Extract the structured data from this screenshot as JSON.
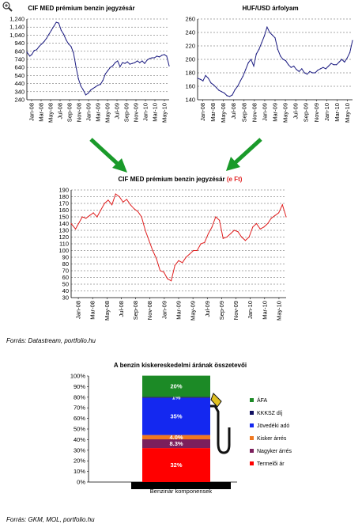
{
  "ui": {
    "zoom_icon": "magnifier-plus-icon"
  },
  "chart_data": [
    {
      "type": "line",
      "title": "CIF MED prémium benzin jegyzésár",
      "ylim": [
        240,
        1240
      ],
      "yticks": [
        "240",
        "340",
        "440",
        "540",
        "640",
        "740",
        "840",
        "940",
        "1,040",
        "1,140",
        "1,240"
      ],
      "xticks": [
        "Jan-08",
        "Mar-08",
        "May-08",
        "Jul-08",
        "Sep-08",
        "Nov-08",
        "Jan-09",
        "Mar-09",
        "May-09",
        "Jul-09",
        "Sep-09",
        "Nov-09",
        "Jan-10",
        "Mar-10",
        "May-10"
      ],
      "series": [
        {
          "color": "#1a1a80",
          "x": [
            0,
            0.6,
            1,
            1.5,
            2,
            2.5,
            3,
            3.5,
            4,
            4.5,
            5,
            5.5,
            6,
            6.5,
            7,
            7.5,
            8,
            8.5,
            9,
            9.5,
            10,
            10.5,
            11,
            11.5,
            12,
            12.5,
            13,
            13.5,
            14,
            14.5,
            15,
            15.5,
            16,
            16.5,
            17,
            17.5,
            18,
            18.5,
            19,
            19.5,
            20,
            20.5,
            21,
            21.5,
            22,
            22.5,
            23,
            23.5,
            24,
            24.5,
            25,
            25.5,
            26,
            26.5,
            27,
            27.5,
            28,
            28.5,
            29
          ],
          "values": [
            830,
            780,
            800,
            850,
            860,
            900,
            930,
            960,
            1000,
            1050,
            1100,
            1150,
            1200,
            1190,
            1100,
            1050,
            980,
            930,
            900,
            820,
            650,
            500,
            410,
            360,
            300,
            320,
            360,
            380,
            400,
            420,
            430,
            480,
            560,
            600,
            640,
            660,
            700,
            720,
            650,
            700,
            690,
            710,
            680,
            690,
            700,
            720,
            700,
            720,
            690,
            730,
            750,
            760,
            760,
            780,
            770,
            790,
            800,
            780,
            660
          ]
        }
      ]
    },
    {
      "type": "line",
      "title": "HUF/USD árfolyam",
      "ylim": [
        140,
        260
      ],
      "yticks": [
        "140",
        "160",
        "180",
        "200",
        "220",
        "240",
        "260"
      ],
      "xticks": [
        "Jan-08",
        "Mar-08",
        "May-08",
        "Jul-08",
        "Sep-08",
        "Nov-08",
        "Jan-09",
        "Mar-09",
        "May-09",
        "Jul-09",
        "Sep-09",
        "Nov-09",
        "Jan-10",
        "Mar-10",
        "May-10"
      ],
      "series": [
        {
          "color": "#1a1a80",
          "x": [
            0,
            0.6,
            1,
            1.5,
            2,
            2.5,
            3,
            3.5,
            4,
            4.5,
            5,
            5.5,
            6,
            6.5,
            7,
            7.5,
            8,
            8.5,
            9,
            9.5,
            10,
            10.5,
            11,
            11.5,
            12,
            12.5,
            13,
            13.5,
            14,
            14.5,
            15,
            15.5,
            16,
            16.5,
            17,
            17.5,
            18,
            18.5,
            19,
            19.5,
            20,
            20.5,
            21,
            21.5,
            22,
            22.5,
            23,
            23.5,
            24,
            24.5,
            25,
            25.5,
            26,
            26.5,
            27,
            27.5,
            28,
            28.5,
            29
          ],
          "values": [
            172,
            170,
            168,
            176,
            172,
            165,
            162,
            158,
            154,
            152,
            150,
            146,
            145,
            147,
            155,
            160,
            168,
            175,
            185,
            195,
            200,
            190,
            208,
            215,
            225,
            235,
            248,
            240,
            236,
            232,
            215,
            205,
            200,
            198,
            192,
            188,
            190,
            185,
            182,
            186,
            180,
            178,
            182,
            180,
            180,
            184,
            186,
            188,
            186,
            190,
            194,
            192,
            192,
            196,
            200,
            196,
            202,
            210,
            228
          ]
        }
      ]
    },
    {
      "type": "line",
      "title": "CIF MED prémium benzin jegyzésár",
      "title_unit": "(e Ft)",
      "ylim": [
        30,
        190
      ],
      "yticks": [
        "30",
        "40",
        "50",
        "60",
        "70",
        "80",
        "90",
        "100",
        "110",
        "120",
        "130",
        "140",
        "150",
        "160",
        "170",
        "180",
        "190"
      ],
      "xticks": [
        "Jan-08",
        "Mar-08",
        "May-08",
        "Jul-08",
        "Sep-08",
        "Nov-08",
        "Jan-09",
        "Mar-09",
        "May-09",
        "Jul-09",
        "Sep-09",
        "Nov-09",
        "Jan-10",
        "Mar-10",
        "May-10"
      ],
      "series": [
        {
          "color": "#e02020",
          "x": [
            0,
            0.6,
            1,
            1.5,
            2,
            2.5,
            3,
            3.5,
            4,
            4.5,
            5,
            5.5,
            6,
            6.5,
            7,
            7.5,
            8,
            8.5,
            9,
            9.5,
            10,
            10.5,
            11,
            11.5,
            12,
            12.5,
            13,
            13.5,
            14,
            14.5,
            15,
            15.5,
            16,
            16.5,
            17,
            17.5,
            18,
            18.5,
            19,
            19.5,
            20,
            20.5,
            21,
            21.5,
            22,
            22.5,
            23,
            23.5,
            24,
            24.5,
            25,
            25.5,
            26,
            26.5,
            27,
            27.5,
            28,
            28.5,
            29
          ],
          "values": [
            140,
            132,
            140,
            150,
            148,
            152,
            156,
            150,
            160,
            170,
            175,
            168,
            184,
            180,
            172,
            176,
            168,
            162,
            158,
            150,
            130,
            115,
            100,
            88,
            70,
            68,
            58,
            55,
            78,
            85,
            82,
            90,
            95,
            100,
            100,
            110,
            112,
            125,
            135,
            150,
            145,
            118,
            120,
            125,
            130,
            128,
            120,
            115,
            120,
            135,
            140,
            132,
            135,
            140,
            148,
            152,
            156,
            168,
            150
          ]
        }
      ]
    },
    {
      "type": "bar",
      "stacked": true,
      "title": "A benzin kiskereskedelmi árának összetevői",
      "categories": [
        "Benzinár komponensek"
      ],
      "ylim": [
        0,
        100
      ],
      "yticks": [
        "0%",
        "10%",
        "20%",
        "30%",
        "40%",
        "50%",
        "60%",
        "70%",
        "80%",
        "90%",
        "100%"
      ],
      "series": [
        {
          "name": "Termelői ár",
          "value": 32,
          "label": "32%",
          "color": "#ff0000"
        },
        {
          "name": "Nagyker árrés",
          "value": 8.3,
          "label": "8.3%",
          "color": "#7b1f5c"
        },
        {
          "name": "Kisker árrés",
          "value": 4.0,
          "label": "4.0%",
          "color": "#f07820"
        },
        {
          "name": "Jövedéki adó",
          "value": 35,
          "label": "35%",
          "color": "#1428f0"
        },
        {
          "name": "KKKSZ díj",
          "value": 1,
          "label": "1%",
          "color": "#101060"
        },
        {
          "name": "ÁFA",
          "value": 20,
          "label": "20%",
          "color": "#1c8a26"
        }
      ],
      "legend_order": [
        "ÁFA",
        "KKKSZ díj",
        "Jövedéki adó",
        "Kisker árrés",
        "Nagyker árrés",
        "Termelői ár"
      ]
    }
  ],
  "sources": [
    "Forrás: Datastream, portfolio.hu",
    "Forrás: GKM, MOL, portfolio.hu"
  ]
}
